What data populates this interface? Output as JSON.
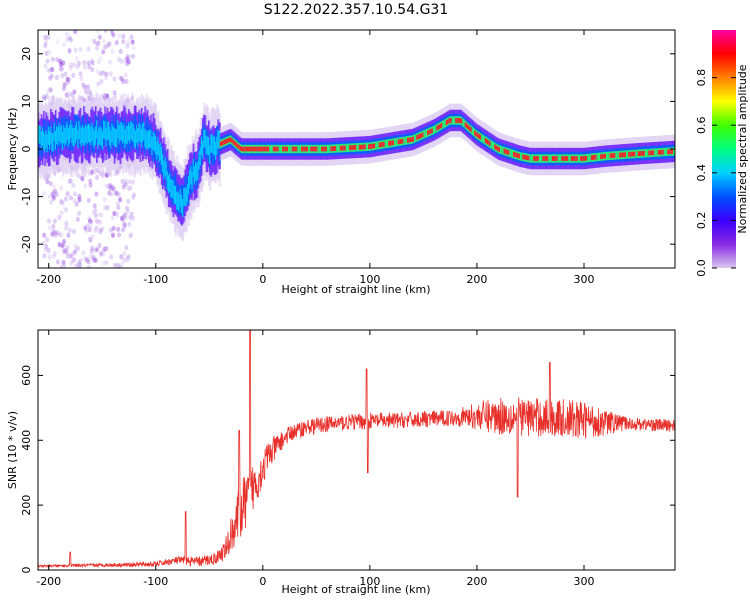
{
  "title": "S122.2022.357.10.54.G31",
  "colors": {
    "snr_line": "#e8302a",
    "colorbar_stops": [
      "#d8c8f0",
      "#8a2be2",
      "#3a00ff",
      "#0050ff",
      "#00d0ff",
      "#00ff80",
      "#40ff00",
      "#ffff00",
      "#ff8000",
      "#ff0000",
      "#ff00a0"
    ]
  },
  "chart_data": [
    {
      "type": "heatmap",
      "xlabel": "Height of straight line (km)",
      "ylabel": "Frequency (Hz)",
      "xlim": [
        -210,
        385
      ],
      "ylim": [
        -25,
        25
      ],
      "xticks": [
        -200,
        -100,
        0,
        100,
        200,
        300
      ],
      "yticks": [
        -20,
        -10,
        0,
        10,
        20
      ],
      "colorbar": {
        "label": "Normalized spectral amplitude",
        "range": [
          0,
          1
        ],
        "ticks": [
          0.0,
          0.2,
          0.4,
          0.6,
          0.8
        ]
      },
      "ridge": {
        "x": [
          -210,
          -180,
          -150,
          -120,
          -110,
          -100,
          -95,
          -90,
          -85,
          -80,
          -75,
          -70,
          -65,
          -60,
          -55,
          -50,
          -40,
          -30,
          -20,
          0,
          40,
          60,
          100,
          140,
          160,
          175,
          185,
          200,
          220,
          240,
          250,
          300,
          320,
          350,
          385
        ],
        "y": [
          2,
          3,
          3,
          3,
          3,
          1,
          -2,
          -5,
          -8,
          -10,
          -12,
          -8,
          -5,
          -4,
          2,
          0,
          1,
          2,
          0,
          0,
          0,
          0,
          0.5,
          2,
          4,
          6,
          6,
          3,
          0,
          -1.5,
          -2,
          -2,
          -1.5,
          -1,
          -0.5
        ]
      }
    },
    {
      "type": "line",
      "xlabel": "Height of straight line (km)",
      "ylabel": "SNR (10 * v/v)",
      "xlim": [
        -210,
        385
      ],
      "ylim": [
        0,
        740
      ],
      "xticks": [
        -200,
        -100,
        0,
        100,
        200,
        300
      ],
      "yticks": [
        0,
        200,
        400,
        600
      ],
      "trend": {
        "x": [
          -210,
          -150,
          -100,
          -80,
          -60,
          -45,
          -35,
          -25,
          -15,
          -5,
          5,
          15,
          25,
          40,
          60,
          80,
          100,
          120,
          150,
          180,
          200,
          230,
          260,
          290,
          320,
          350,
          385
        ],
        "y": [
          12,
          15,
          18,
          30,
          25,
          35,
          60,
          150,
          220,
          280,
          350,
          390,
          420,
          440,
          450,
          455,
          460,
          460,
          465,
          470,
          475,
          475,
          470,
          465,
          455,
          450,
          445
        ]
      },
      "noise": {
        "x": [
          -210,
          -100,
          -40,
          -20,
          20,
          180,
          220,
          300,
          340,
          385
        ],
        "y": [
          3,
          8,
          20,
          90,
          25,
          25,
          60,
          60,
          20,
          20
        ]
      },
      "spikes": [
        {
          "x": -180,
          "y": 55
        },
        {
          "x": -72,
          "y": 180
        },
        {
          "x": -22,
          "y": 430
        },
        {
          "x": -12,
          "y": 740
        },
        {
          "x": 97,
          "y": 620
        },
        {
          "x": 98,
          "y": 300
        },
        {
          "x": 238,
          "y": 225
        },
        {
          "x": 268,
          "y": 640
        }
      ]
    }
  ]
}
